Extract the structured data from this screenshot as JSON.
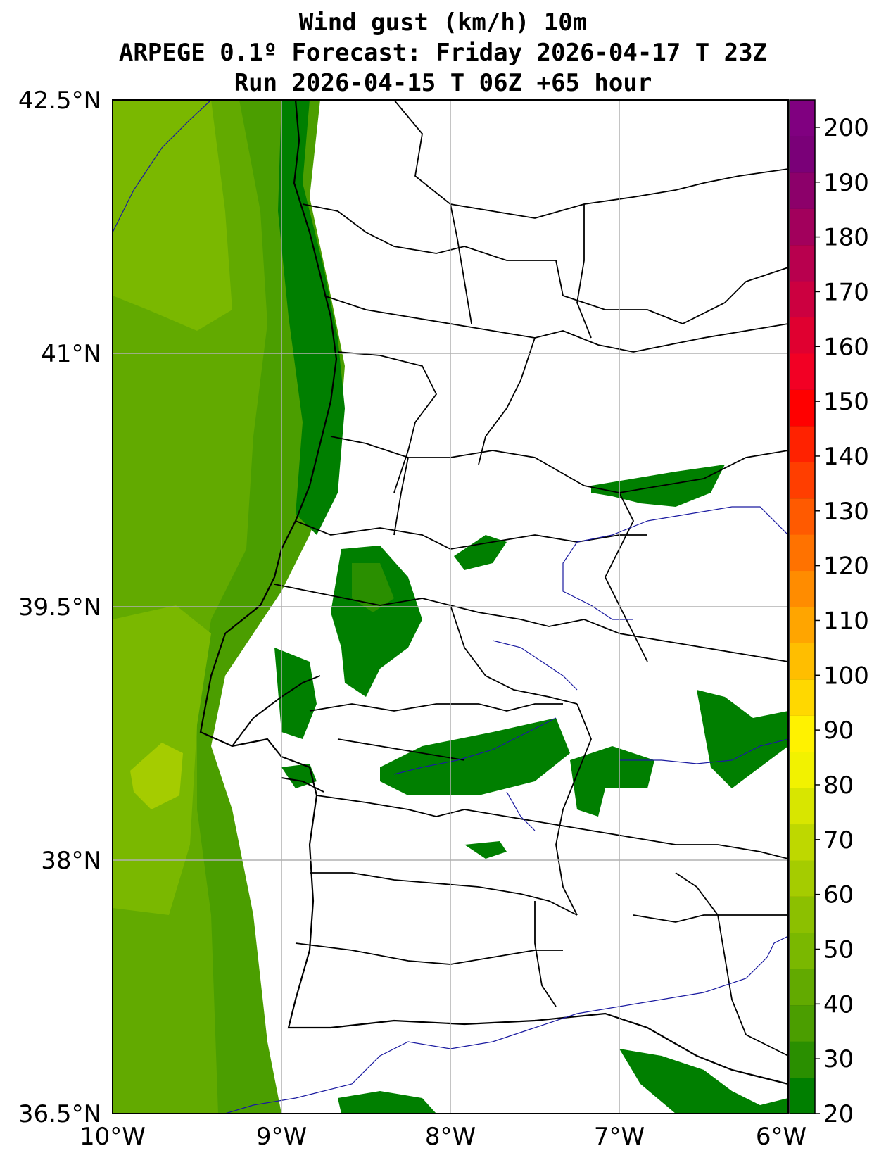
{
  "title": {
    "line1": "Wind gust (km/h) 10m",
    "line2": "ARPEGE 0.1º Forecast: Friday 2026-04-17 T 23Z",
    "line3": "Run 2026-04-15 T 06Z +65 hour"
  },
  "map": {
    "lat_labels": [
      "42.5°N",
      "41°N",
      "39.5°N",
      "38°N",
      "36.5°N"
    ],
    "lon_labels": [
      "10°W",
      "9°W",
      "8°W",
      "7°W",
      "6°W"
    ],
    "grid": true
  },
  "colorbar": {
    "labels": [
      "20",
      "30",
      "40",
      "50",
      "60",
      "70",
      "80",
      "90",
      "100",
      "110",
      "120",
      "130",
      "140",
      "150",
      "160",
      "170",
      "180",
      "190",
      "200"
    ],
    "range": [
      20,
      205
    ],
    "colors": [
      "#007f00",
      "#2a8f00",
      "#4b9e00",
      "#62aa00",
      "#7ab800",
      "#8cc000",
      "#a5cc00",
      "#bed800",
      "#d8e600",
      "#f2f200",
      "#fff200",
      "#ffd800",
      "#ffbe00",
      "#ffa500",
      "#ff8c00",
      "#ff7200",
      "#ff5a00",
      "#ff3e00",
      "#ff2200",
      "#ff0000",
      "#f20024",
      "#e00030",
      "#cc0040",
      "#b8004e",
      "#a2005c",
      "#8c006a",
      "#7a0078",
      "#800080"
    ]
  }
}
